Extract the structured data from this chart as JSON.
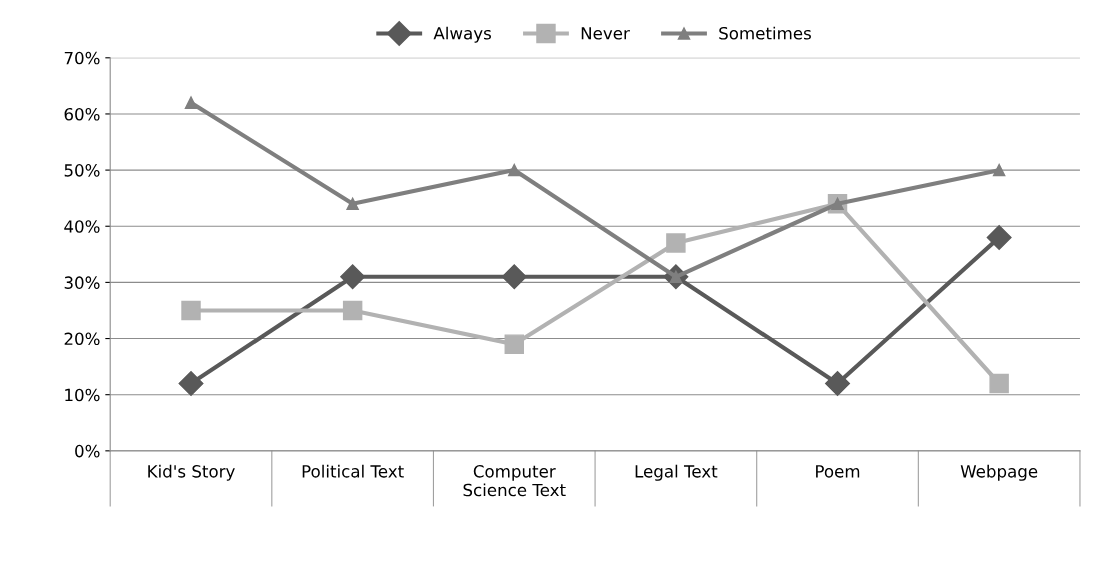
{
  "chart_data": {
    "type": "line",
    "categories": [
      "Kid's Story",
      "Political Text",
      "Computer\nScience Text",
      "Legal Text",
      "Poem",
      "Webpage"
    ],
    "series": [
      {
        "name": "Always",
        "color": "#595959",
        "marker": "diamond",
        "values": [
          12,
          31,
          31,
          31,
          12,
          38
        ]
      },
      {
        "name": "Never",
        "color": "#b2b2b2",
        "marker": "square",
        "values": [
          25,
          25,
          19,
          37,
          44,
          12
        ]
      },
      {
        "name": "Sometimes",
        "color": "#7f7f7f",
        "marker": "triangle",
        "values": [
          62,
          44,
          50,
          31,
          44,
          50
        ]
      }
    ],
    "ylim": [
      0,
      70
    ],
    "yticks": [
      {
        "value": 0,
        "label": "0%"
      },
      {
        "value": 10,
        "label": "10%"
      },
      {
        "value": 20,
        "label": "20%"
      },
      {
        "value": 30,
        "label": "30%"
      },
      {
        "value": 40,
        "label": "40%"
      },
      {
        "value": 50,
        "label": "50%"
      },
      {
        "value": 60,
        "label": "60%"
      },
      {
        "value": 70,
        "label": "70%"
      }
    ],
    "grid": "y",
    "legend": "top",
    "line_style": "solid"
  }
}
